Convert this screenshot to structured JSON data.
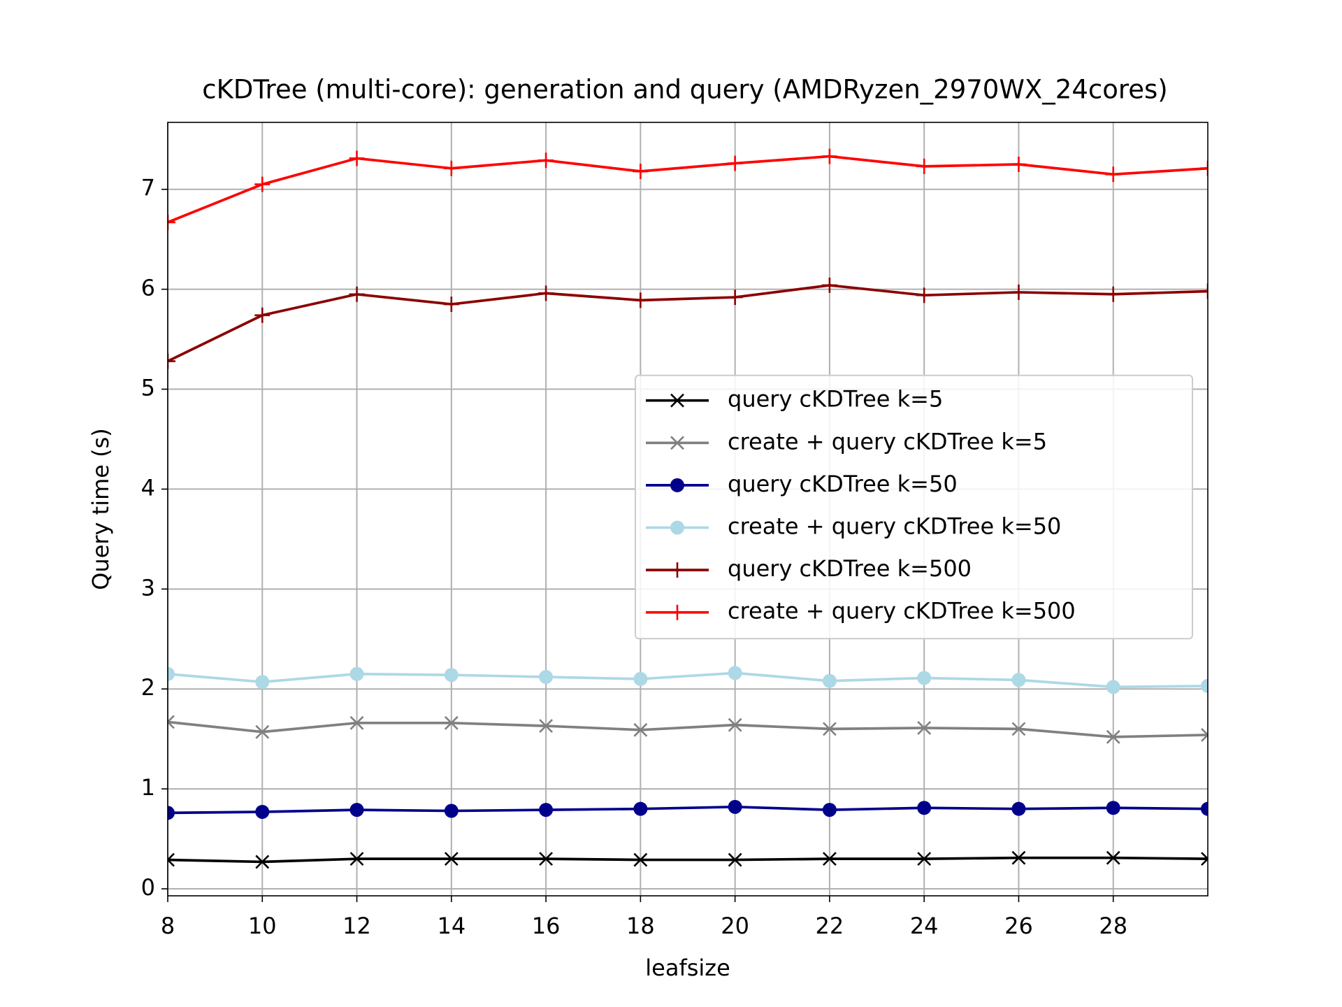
{
  "chart_data": {
    "type": "line",
    "title": "cKDTree (multi-core): generation and query (AMDRyzen_2970WX_24cores)",
    "x_label": "leafsize",
    "y_label": "Query time (s)",
    "x": [
      8,
      10,
      12,
      14,
      16,
      18,
      20,
      22,
      24,
      26,
      28,
      30
    ],
    "series": [
      {
        "name": "query cKDTree k=5",
        "color": "#000000",
        "marker": "x",
        "values": [
          0.29,
          0.27,
          0.3,
          0.3,
          0.3,
          0.29,
          0.29,
          0.3,
          0.3,
          0.31,
          0.31,
          0.3
        ]
      },
      {
        "name": "create + query cKDTree k=5",
        "color": "#808080",
        "marker": "x",
        "values": [
          1.67,
          1.57,
          1.66,
          1.66,
          1.63,
          1.59,
          1.64,
          1.6,
          1.61,
          1.6,
          1.52,
          1.54
        ]
      },
      {
        "name": "query cKDTree k=50",
        "color": "#00008b",
        "marker": "o",
        "values": [
          0.76,
          0.77,
          0.79,
          0.78,
          0.79,
          0.8,
          0.82,
          0.79,
          0.81,
          0.8,
          0.81,
          0.8
        ]
      },
      {
        "name": "create + query cKDTree k=50",
        "color": "#add8e6",
        "marker": "o",
        "values": [
          2.15,
          2.07,
          2.15,
          2.14,
          2.12,
          2.1,
          2.16,
          2.08,
          2.11,
          2.09,
          2.02,
          2.03
        ]
      },
      {
        "name": "query cKDTree k=500",
        "color": "#8b0000",
        "marker": "+",
        "values": [
          5.28,
          5.74,
          5.95,
          5.85,
          5.96,
          5.89,
          5.92,
          6.04,
          5.94,
          5.97,
          5.95,
          5.98
        ]
      },
      {
        "name": "create + query cKDTree k=500",
        "color": "#ff0000",
        "marker": "+",
        "values": [
          6.67,
          7.05,
          7.31,
          7.21,
          7.29,
          7.18,
          7.26,
          7.33,
          7.23,
          7.25,
          7.15,
          7.21
        ]
      }
    ],
    "xlim": [
      8,
      30
    ],
    "ylim": [
      -0.07,
      7.67
    ],
    "xticks": [
      8,
      10,
      12,
      14,
      16,
      18,
      20,
      22,
      24,
      26,
      28
    ],
    "yticks": [
      0,
      1,
      2,
      3,
      4,
      5,
      6,
      7
    ],
    "grid": true,
    "legend": "center right"
  }
}
